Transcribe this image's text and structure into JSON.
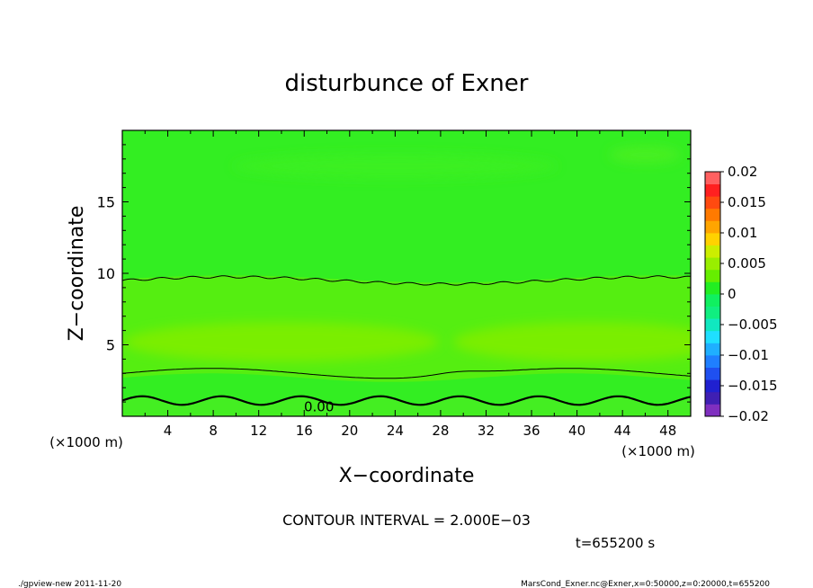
{
  "chart_data": {
    "type": "heatmap",
    "title": "disturbunce of Exner",
    "xlabel": "X−coordinate",
    "ylabel": "Z−coordinate",
    "x_unit_left": "(×1000 m)",
    "x_unit_right": "(×1000 m)",
    "xlim": [
      0,
      50
    ],
    "ylim": [
      0,
      20
    ],
    "x_ticks": [
      4,
      8,
      12,
      16,
      20,
      24,
      28,
      32,
      36,
      40,
      44,
      48
    ],
    "y_ticks": [
      5,
      10,
      15
    ],
    "contour_interval_text": "CONTOUR INTERVAL = 2.000E−03",
    "time_text": "t=655200 s",
    "contour_label": "0.00",
    "colorbar": {
      "min": -0.02,
      "max": 0.02,
      "tick_labels": [
        "0.02",
        "0.015",
        "0.01",
        "0.005",
        "0",
        "−0.005",
        "−0.01",
        "−0.015",
        "−0.02"
      ],
      "levels": [
        -0.02,
        -0.018,
        -0.016,
        -0.014,
        -0.012,
        -0.01,
        -0.008,
        -0.006,
        -0.004,
        -0.002,
        0,
        0.002,
        0.004,
        0.006,
        0.008,
        0.01,
        0.012,
        0.014,
        0.016,
        0.018,
        0.02
      ],
      "colors": [
        "#7f2fbf",
        "#3f1fb3",
        "#2020d0",
        "#1f50f0",
        "#1f7fff",
        "#1fafff",
        "#1fdfff",
        "#10e8c0",
        "#10ee80",
        "#10f060",
        "#22ee22",
        "#66ee00",
        "#99ee00",
        "#ccee00",
        "#ffd200",
        "#ffa500",
        "#ff7a00",
        "#ff4a10",
        "#ff2020",
        "#ff6060"
      ]
    },
    "field_description_levels": {
      "background_upper": "#33ee22",
      "band_mid": "#55ee11",
      "band_low_core": "#7aee00",
      "near_surface": "#44ee22"
    },
    "contours_z": [
      {
        "value": 0.002,
        "z_nominal": 9.5
      },
      {
        "value": 0.002,
        "z_nominal": 3.0
      },
      {
        "value": 0.0,
        "z_nominal": 1.1
      }
    ]
  },
  "footer": {
    "left": "./gpview-new   2011-11-20",
    "right": "MarsCond_Exner.nc@Exner,x=0:50000,z=0:20000,t=655200"
  },
  "colors": {
    "frame": "#000000",
    "contour_line": "#000000"
  }
}
